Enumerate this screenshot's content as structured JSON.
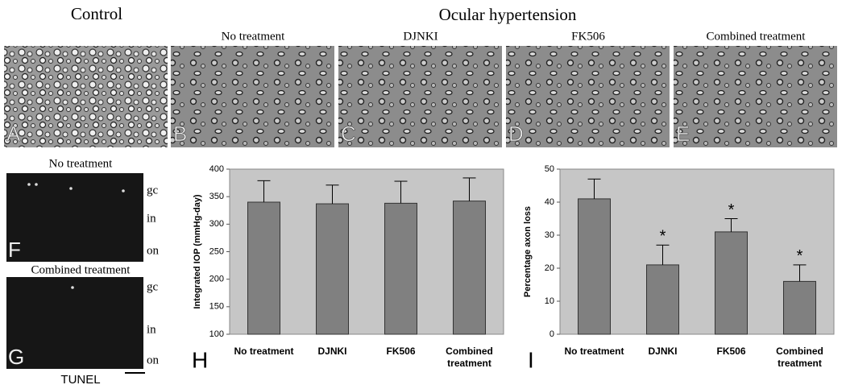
{
  "figure": {
    "headings": {
      "control": "Control",
      "ocular": "Ocular hypertension"
    },
    "micrographs": [
      {
        "letter": "A"
      },
      {
        "letter": "B",
        "label": "No treatment"
      },
      {
        "letter": "C",
        "label": "DJNKI"
      },
      {
        "letter": "D",
        "label": "FK506"
      },
      {
        "letter": "E",
        "label": "Combined treatment"
      }
    ],
    "tunel": {
      "panels": [
        {
          "letter": "F",
          "label": "No treatment"
        },
        {
          "letter": "G",
          "label": "Combined treatment"
        }
      ],
      "layers": [
        "gc",
        "in",
        "on"
      ],
      "caption": "TUNEL"
    }
  },
  "chart_data": [
    {
      "type": "bar",
      "panel_letter": "H",
      "y_label": "Integrated IOP (mmHg-day)",
      "categories": [
        "No treatment",
        "DJNKI",
        "FK506",
        "Combined treatment"
      ],
      "values": [
        340,
        337,
        338,
        342
      ],
      "errors": [
        39,
        34,
        40,
        42
      ],
      "color": "#808080",
      "ylim": [
        100,
        400
      ],
      "yticks": [
        100,
        150,
        200,
        250,
        300,
        350,
        400
      ]
    },
    {
      "type": "bar",
      "panel_letter": "I",
      "y_label": "Percentage axon loss",
      "categories": [
        "No treatment",
        "DJNKI",
        "FK506",
        "Combined treatment"
      ],
      "values": [
        41,
        21,
        31,
        16
      ],
      "errors": [
        6,
        6,
        4,
        5
      ],
      "color": "#808080",
      "significance": [
        null,
        "*",
        "*",
        "*"
      ],
      "ylim": [
        0,
        50
      ],
      "yticks": [
        0,
        10,
        20,
        30,
        40,
        50
      ]
    }
  ]
}
